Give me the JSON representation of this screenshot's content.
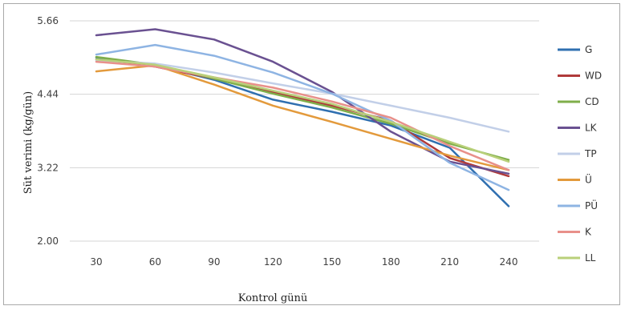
{
  "chart_data": {
    "type": "line",
    "title": "",
    "xlabel": "Kontrol günü",
    "ylabel": "Süt verimi (kg/gün)",
    "x": [
      30,
      60,
      90,
      120,
      150,
      180,
      210,
      240
    ],
    "x_tick_labels": [
      "30",
      "60",
      "90",
      "120",
      "150",
      "180",
      "210",
      "240"
    ],
    "y_ticks": [
      2.0,
      3.22,
      4.44,
      5.66
    ],
    "y_tick_labels": [
      "2.00",
      "3.22",
      "4.44",
      "5.66"
    ],
    "ylim": [
      2.0,
      5.66
    ],
    "grid": "horizontal",
    "legend_position": "right",
    "series": [
      {
        "name": "G",
        "color": "#2f6fb0",
        "values": [
          5.05,
          4.92,
          4.68,
          4.35,
          4.15,
          3.92,
          3.55,
          2.58
        ]
      },
      {
        "name": "WD",
        "color": "#b03a3a",
        "values": [
          5.02,
          4.9,
          4.7,
          4.48,
          4.25,
          4.0,
          3.38,
          3.08
        ]
      },
      {
        "name": "CD",
        "color": "#7fae4a",
        "values": [
          5.06,
          4.93,
          4.7,
          4.45,
          4.22,
          3.95,
          3.62,
          3.35
        ]
      },
      {
        "name": "LK",
        "color": "#6a5191",
        "values": [
          5.42,
          5.52,
          5.35,
          4.98,
          4.48,
          3.82,
          3.32,
          3.12
        ]
      },
      {
        "name": "TP",
        "color": "#c2cfe8",
        "values": [
          5.0,
          4.95,
          4.8,
          4.62,
          4.45,
          4.25,
          4.05,
          3.82
        ]
      },
      {
        "name": "Ü",
        "color": "#e39a3c",
        "values": [
          4.82,
          4.92,
          4.6,
          4.25,
          3.98,
          3.7,
          3.42,
          3.18
        ]
      },
      {
        "name": "PÜ",
        "color": "#8eb4e3",
        "values": [
          5.1,
          5.26,
          5.08,
          4.8,
          4.45,
          4.0,
          3.3,
          2.85
        ]
      },
      {
        "name": "K",
        "color": "#e8908a",
        "values": [
          4.98,
          4.9,
          4.72,
          4.55,
          4.32,
          4.05,
          3.58,
          3.18
        ]
      },
      {
        "name": "LL",
        "color": "#b9d07a",
        "values": [
          5.02,
          4.93,
          4.72,
          4.5,
          4.28,
          3.98,
          3.65,
          3.32
        ]
      }
    ]
  }
}
